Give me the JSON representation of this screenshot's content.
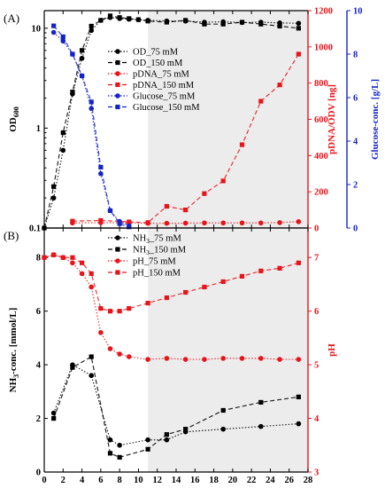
{
  "chart_data": [
    {
      "panel_label": "(A)",
      "type": "line",
      "xlabel": "",
      "x_ticks": [
        0,
        2,
        4,
        6,
        8,
        10,
        12,
        14,
        16,
        18,
        20,
        22,
        24,
        26,
        28
      ],
      "shaded_region_from_x": 11,
      "axes": {
        "left": {
          "label": "OD",
          "label_sub": "600",
          "scale": "log",
          "range": [
            0.1,
            15
          ],
          "tick_labels": [
            "0.1",
            "1",
            "10"
          ],
          "color": "#000000"
        },
        "right1": {
          "label": "pDNA/ODV [ng]",
          "range": [
            0,
            1200
          ],
          "tick_labels": [
            "0",
            "200",
            "400",
            "600",
            "800",
            "1000",
            "1200"
          ],
          "color": "#e8141a"
        },
        "right2": {
          "label": "Glucose-conc. [g/L]",
          "range": [
            0,
            10
          ],
          "tick_labels": [
            "0",
            "2",
            "4",
            "6",
            "8",
            "10"
          ],
          "color": "#1424c8"
        }
      },
      "series": [
        {
          "name": "OD_75 mM",
          "axis": "left",
          "marker": "circle",
          "dash": "dot",
          "color": "#000000",
          "x": [
            0,
            1,
            2,
            3,
            4,
            5,
            6,
            7,
            8,
            9,
            10,
            11,
            13,
            15,
            17,
            19,
            21,
            23,
            25,
            27
          ],
          "y": [
            0.1,
            0.2,
            0.6,
            2.2,
            5.0,
            9.5,
            12.0,
            12.8,
            12.5,
            12.3,
            12.2,
            12.0,
            11.8,
            11.8,
            11.5,
            11.6,
            11.4,
            11.5,
            11.3,
            11.2
          ]
        },
        {
          "name": "OD_150 mM",
          "axis": "left",
          "marker": "square",
          "dash": "dash",
          "color": "#000000",
          "x": [
            0,
            1,
            2,
            3,
            4,
            5,
            6,
            7,
            8,
            9,
            10,
            11,
            13,
            15,
            17,
            19,
            21,
            23,
            25,
            27
          ],
          "y": [
            0.1,
            0.26,
            0.9,
            2.3,
            6.0,
            10.5,
            12.0,
            13.3,
            12.8,
            12.5,
            12.2,
            11.8,
            11.5,
            12.0,
            11.0,
            11.0,
            11.5,
            11.0,
            10.5,
            10.0
          ]
        },
        {
          "name": "pDNA_75 mM",
          "axis": "right1",
          "marker": "circle",
          "dash": "dot",
          "color": "#e8141a",
          "x": [
            3,
            6,
            9,
            11,
            13,
            15,
            17,
            19,
            21,
            23,
            25,
            27
          ],
          "y": [
            28,
            30,
            28,
            26,
            26,
            27,
            28,
            28,
            28,
            28,
            30,
            35
          ]
        },
        {
          "name": "pDNA_150 mM",
          "axis": "right1",
          "marker": "square",
          "dash": "dash",
          "color": "#e8141a",
          "x": [
            3,
            6,
            9,
            11,
            13,
            15,
            17,
            19,
            21,
            23,
            25,
            27
          ],
          "y": [
            38,
            42,
            34,
            30,
            120,
            100,
            190,
            260,
            460,
            700,
            790,
            960
          ]
        },
        {
          "name": "Glucose_75 mM",
          "axis": "right2",
          "marker": "circle",
          "dash": "dot",
          "color": "#1424c8",
          "x": [
            1,
            2,
            3,
            4,
            5,
            6,
            7,
            8,
            9
          ],
          "y": [
            9.0,
            8.6,
            8.0,
            7.0,
            5.5,
            2.5,
            0.8,
            0.3,
            0.1
          ]
        },
        {
          "name": "Glucose_150 mM",
          "axis": "right2",
          "marker": "square",
          "dash": "dash",
          "color": "#1424c8",
          "x": [
            1,
            2,
            3,
            4,
            5,
            6,
            7,
            8,
            9
          ],
          "y": [
            9.3,
            8.8,
            8.0,
            7.0,
            5.8,
            2.8,
            0.8,
            0.2,
            0.05
          ]
        }
      ],
      "legend_placement": "center-right"
    },
    {
      "panel_label": "(B)",
      "type": "line",
      "xlabel": "Process time [h]",
      "x_ticks": [
        0,
        2,
        4,
        6,
        8,
        10,
        12,
        14,
        16,
        18,
        20,
        22,
        24,
        26,
        28
      ],
      "x_tick_labels": [
        "0",
        "2",
        "4",
        "6",
        "8",
        "10",
        "12",
        "14",
        "16",
        "18",
        "20",
        "22",
        "24",
        "26",
        "28"
      ],
      "shaded_region_from_x": 11,
      "axes": {
        "left": {
          "label": "NH",
          "label_sub": "3",
          "label_suffix": "-conc. [mmol/L]",
          "range": [
            0,
            9.1
          ],
          "tick_labels": [
            "0",
            "2",
            "4",
            "6",
            "8"
          ],
          "color": "#000000"
        },
        "right1": {
          "label": "pH",
          "range": [
            3,
            7.55
          ],
          "tick_labels": [
            "3",
            "4",
            "5",
            "6",
            "7"
          ],
          "color": "#e8141a"
        }
      },
      "series": [
        {
          "name": "NH3_75 mM",
          "axis": "left",
          "marker": "circle",
          "dash": "dot",
          "color": "#000000",
          "x": [
            1,
            3,
            5,
            7,
            8,
            11,
            13,
            15,
            19,
            23,
            27
          ],
          "y": [
            2.2,
            4.0,
            3.6,
            1.2,
            1.0,
            1.2,
            1.2,
            1.5,
            1.6,
            1.7,
            1.8
          ]
        },
        {
          "name": "NH3_150 mM",
          "axis": "left",
          "marker": "square",
          "dash": "dash",
          "color": "#000000",
          "x": [
            1,
            3,
            5,
            7,
            8,
            11,
            13,
            15,
            19,
            23,
            27
          ],
          "y": [
            2.0,
            3.9,
            4.3,
            0.7,
            0.55,
            0.85,
            1.4,
            1.6,
            2.3,
            2.6,
            2.8
          ]
        },
        {
          "name": "pH_75 mM",
          "axis": "right1",
          "marker": "circle",
          "dash": "dot",
          "color": "#e8141a",
          "x": [
            0,
            1,
            2,
            3,
            4,
            5,
            6,
            7,
            8,
            9,
            11,
            13,
            15,
            17,
            19,
            21,
            23,
            25,
            27
          ],
          "y": [
            7.0,
            7.05,
            7.0,
            6.9,
            6.7,
            6.45,
            5.6,
            5.3,
            5.2,
            5.15,
            5.1,
            5.12,
            5.1,
            5.1,
            5.12,
            5.12,
            5.12,
            5.1,
            5.1
          ]
        },
        {
          "name": "pH_150 mM",
          "axis": "right1",
          "marker": "square",
          "dash": "dash",
          "color": "#e8141a",
          "x": [
            0,
            1,
            2,
            3,
            4,
            5,
            6,
            7,
            8,
            9,
            11,
            13,
            15,
            17,
            19,
            21,
            23,
            25,
            27
          ],
          "y": [
            7.0,
            7.05,
            7.0,
            7.0,
            6.9,
            6.7,
            6.05,
            6.0,
            6.0,
            6.05,
            6.15,
            6.25,
            6.35,
            6.45,
            6.55,
            6.65,
            6.75,
            6.8,
            6.9
          ]
        }
      ],
      "legend_placement": "top-center"
    }
  ]
}
